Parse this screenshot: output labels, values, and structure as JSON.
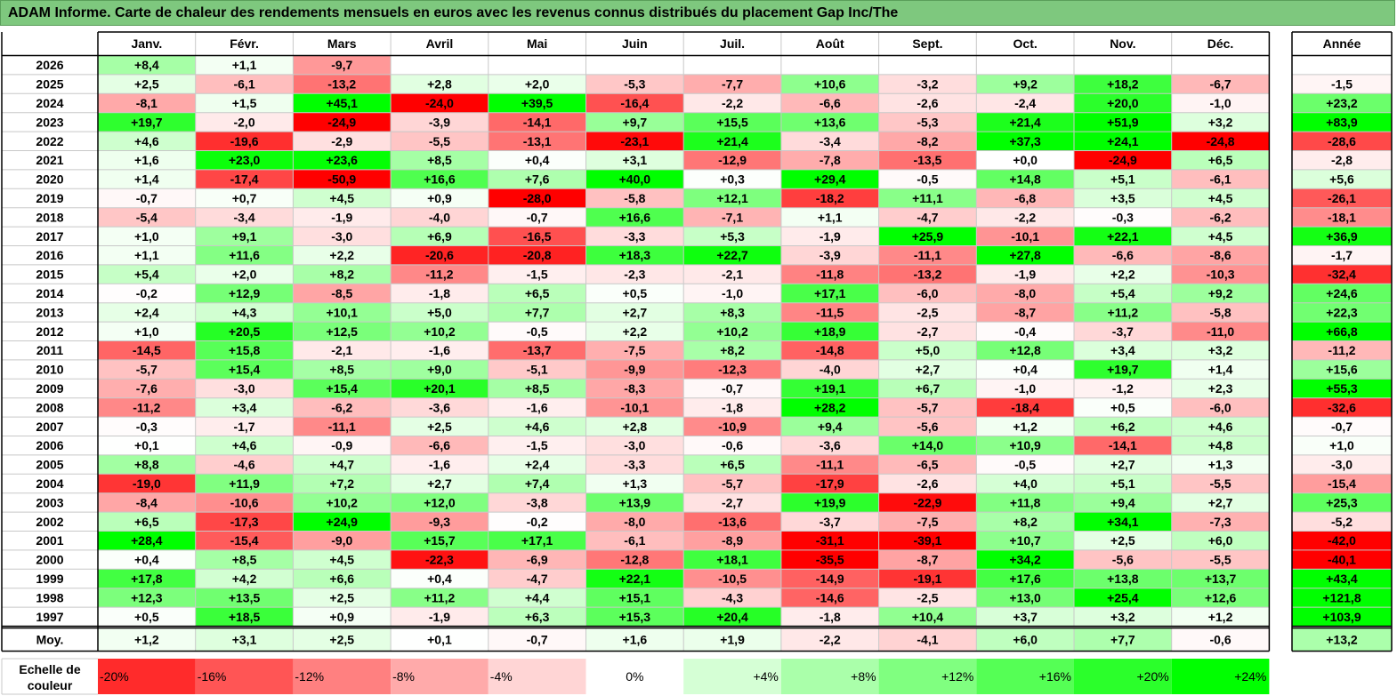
{
  "title": "ADAM Informe. Carte de chaleur des rendements mensuels en euros avec les revenus connus distribués du placement Gap Inc/The",
  "chart_data": {
    "type": "heatmap",
    "title": "ADAM Informe. Carte de chaleur des rendements mensuels en euros avec les revenus connus distribués du placement Gap Inc/The",
    "columns": [
      "Janv.",
      "Févr.",
      "Mars",
      "Avril",
      "Mai",
      "Juin",
      "Juil.",
      "Août",
      "Sept.",
      "Oct.",
      "Nov.",
      "Déc."
    ],
    "year_header": "Année",
    "rows": [
      {
        "year": "2026",
        "values": [
          "+8,4",
          "+1,1",
          "-9,7",
          "",
          "",
          "",
          "",
          "",
          "",
          "",
          "",
          ""
        ],
        "annual": ""
      },
      {
        "year": "2025",
        "values": [
          "+2,5",
          "-6,1",
          "-13,2",
          "+2,8",
          "+2,0",
          "-5,3",
          "-7,7",
          "+10,6",
          "-3,2",
          "+9,2",
          "+18,2",
          "-6,7"
        ],
        "annual": "-1,5"
      },
      {
        "year": "2024",
        "values": [
          "-8,1",
          "+1,5",
          "+45,1",
          "-24,0",
          "+39,5",
          "-16,4",
          "-2,2",
          "-6,6",
          "-2,6",
          "-2,4",
          "+20,0",
          "-1,0"
        ],
        "annual": "+23,2"
      },
      {
        "year": "2023",
        "values": [
          "+19,7",
          "-2,0",
          "-24,9",
          "-3,9",
          "-14,1",
          "+9,7",
          "+15,5",
          "+13,6",
          "-5,3",
          "+21,4",
          "+51,9",
          "+3,2"
        ],
        "annual": "+83,9"
      },
      {
        "year": "2022",
        "values": [
          "+4,6",
          "-19,6",
          "-2,9",
          "-5,5",
          "-13,1",
          "-23,1",
          "+21,4",
          "-3,4",
          "-8,2",
          "+37,3",
          "+24,1",
          "-24,8"
        ],
        "annual": "-28,6"
      },
      {
        "year": "2021",
        "values": [
          "+1,6",
          "+23,0",
          "+23,6",
          "+8,5",
          "+0,4",
          "+3,1",
          "-12,9",
          "-7,8",
          "-13,5",
          "+0,0",
          "-24,9",
          "+6,5"
        ],
        "annual": "-2,8"
      },
      {
        "year": "2020",
        "values": [
          "+1,4",
          "-17,4",
          "-50,9",
          "+16,6",
          "+7,6",
          "+40,0",
          "+0,3",
          "+29,4",
          "-0,5",
          "+14,8",
          "+5,1",
          "-6,1"
        ],
        "annual": "+5,6"
      },
      {
        "year": "2019",
        "values": [
          "-0,7",
          "+0,7",
          "+4,5",
          "+0,9",
          "-28,0",
          "-5,8",
          "+12,1",
          "-18,2",
          "+11,1",
          "-6,8",
          "+3,5",
          "+4,5"
        ],
        "annual": "-26,1"
      },
      {
        "year": "2018",
        "values": [
          "-5,4",
          "-3,4",
          "-1,9",
          "-4,0",
          "-0,7",
          "+16,6",
          "-7,1",
          "+1,1",
          "-4,7",
          "-2,2",
          "-0,3",
          "-6,2"
        ],
        "annual": "-18,1"
      },
      {
        "year": "2017",
        "values": [
          "+1,0",
          "+9,1",
          "-3,0",
          "+6,9",
          "-16,5",
          "-3,3",
          "+5,3",
          "-1,9",
          "+25,9",
          "-10,1",
          "+22,1",
          "+4,5"
        ],
        "annual": "+36,9"
      },
      {
        "year": "2016",
        "values": [
          "+1,1",
          "+11,6",
          "+2,2",
          "-20,6",
          "-20,8",
          "+18,3",
          "+22,7",
          "-3,9",
          "-11,1",
          "+27,8",
          "-6,6",
          "-8,6"
        ],
        "annual": "-1,7"
      },
      {
        "year": "2015",
        "values": [
          "+5,4",
          "+2,0",
          "+8,2",
          "-11,2",
          "-1,5",
          "-2,3",
          "-2,1",
          "-11,8",
          "-13,2",
          "-1,9",
          "+2,2",
          "-10,3"
        ],
        "annual": "-32,4"
      },
      {
        "year": "2014",
        "values": [
          "-0,2",
          "+12,9",
          "-8,5",
          "-1,8",
          "+6,5",
          "+0,5",
          "-1,0",
          "+17,1",
          "-6,0",
          "-8,0",
          "+5,4",
          "+9,2"
        ],
        "annual": "+24,6"
      },
      {
        "year": "2013",
        "values": [
          "+2,4",
          "+4,3",
          "+10,1",
          "+5,0",
          "+7,7",
          "+2,7",
          "+8,3",
          "-11,5",
          "-2,5",
          "-8,7",
          "+11,2",
          "-5,8"
        ],
        "annual": "+22,3"
      },
      {
        "year": "2012",
        "values": [
          "+1,0",
          "+20,5",
          "+12,5",
          "+10,2",
          "-0,5",
          "+2,2",
          "+10,2",
          "+18,9",
          "-2,7",
          "-0,4",
          "-3,7",
          "-11,0"
        ],
        "annual": "+66,8"
      },
      {
        "year": "2011",
        "values": [
          "-14,5",
          "+15,8",
          "-2,1",
          "-1,6",
          "-13,7",
          "-7,5",
          "+8,2",
          "-14,8",
          "+5,0",
          "+12,8",
          "+3,4",
          "+3,2"
        ],
        "annual": "-11,2"
      },
      {
        "year": "2010",
        "values": [
          "-5,7",
          "+15,4",
          "+8,5",
          "+9,0",
          "-5,1",
          "-9,9",
          "-12,3",
          "-4,0",
          "+2,7",
          "+0,4",
          "+19,7",
          "+1,4"
        ],
        "annual": "+15,6"
      },
      {
        "year": "2009",
        "values": [
          "-7,6",
          "-3,0",
          "+15,4",
          "+20,1",
          "+8,5",
          "-8,3",
          "-0,7",
          "+19,1",
          "+6,7",
          "-1,0",
          "-1,2",
          "+2,3"
        ],
        "annual": "+55,3"
      },
      {
        "year": "2008",
        "values": [
          "-11,2",
          "+3,4",
          "-6,2",
          "-3,6",
          "-1,6",
          "-10,1",
          "-1,8",
          "+28,2",
          "-5,7",
          "-18,4",
          "+0,5",
          "-6,0"
        ],
        "annual": "-32,6"
      },
      {
        "year": "2007",
        "values": [
          "-0,3",
          "-1,7",
          "-11,1",
          "+2,5",
          "+4,6",
          "+2,8",
          "-10,9",
          "+9,4",
          "-5,6",
          "+1,2",
          "+6,2",
          "+4,6"
        ],
        "annual": "-0,7"
      },
      {
        "year": "2006",
        "values": [
          "+0,1",
          "+4,6",
          "-0,9",
          "-6,6",
          "-1,5",
          "-3,0",
          "-0,6",
          "-3,6",
          "+14,0",
          "+10,9",
          "-14,1",
          "+4,8"
        ],
        "annual": "+1,0"
      },
      {
        "year": "2005",
        "values": [
          "+8,8",
          "-4,6",
          "+4,7",
          "-1,6",
          "+2,4",
          "-3,3",
          "+6,5",
          "-11,1",
          "-6,5",
          "-0,5",
          "+2,7",
          "+1,3"
        ],
        "annual": "-3,0"
      },
      {
        "year": "2004",
        "values": [
          "-19,0",
          "+11,9",
          "+7,2",
          "+2,7",
          "+7,4",
          "+1,3",
          "-5,7",
          "-17,9",
          "-2,6",
          "+4,0",
          "+5,1",
          "-5,5"
        ],
        "annual": "-15,4"
      },
      {
        "year": "2003",
        "values": [
          "-8,4",
          "-10,6",
          "+10,2",
          "+12,0",
          "-3,8",
          "+13,9",
          "-2,7",
          "+19,9",
          "-22,9",
          "+11,8",
          "+9,4",
          "+2,7"
        ],
        "annual": "+25,3"
      },
      {
        "year": "2002",
        "values": [
          "+6,5",
          "-17,3",
          "+24,9",
          "-9,3",
          "-0,2",
          "-8,0",
          "-13,6",
          "-3,7",
          "-7,5",
          "+8,2",
          "+34,1",
          "-7,3"
        ],
        "annual": "-5,2"
      },
      {
        "year": "2001",
        "values": [
          "+28,4",
          "-15,4",
          "-9,0",
          "+15,7",
          "+17,1",
          "-6,1",
          "-8,9",
          "-31,1",
          "-39,1",
          "+10,7",
          "+2,5",
          "+6,0"
        ],
        "annual": "-42,0"
      },
      {
        "year": "2000",
        "values": [
          "+0,4",
          "+8,5",
          "+4,5",
          "-22,3",
          "-6,9",
          "-12,8",
          "+18,1",
          "-35,5",
          "-8,7",
          "+34,2",
          "-5,6",
          "-5,5"
        ],
        "annual": "-40,1"
      },
      {
        "year": "1999",
        "values": [
          "+17,8",
          "+4,2",
          "+6,6",
          "+0,4",
          "-4,7",
          "+22,1",
          "-10,5",
          "-14,9",
          "-19,1",
          "+17,6",
          "+13,8",
          "+13,7"
        ],
        "annual": "+43,4"
      },
      {
        "year": "1998",
        "values": [
          "+12,3",
          "+13,5",
          "+2,5",
          "+11,2",
          "+4,4",
          "+15,1",
          "-4,3",
          "-14,6",
          "-2,5",
          "+13,0",
          "+25,4",
          "+12,6"
        ],
        "annual": "+121,8"
      },
      {
        "year": "1997",
        "values": [
          "+0,5",
          "+18,5",
          "+0,9",
          "-1,9",
          "+6,3",
          "+15,3",
          "+20,4",
          "-1,8",
          "+10,4",
          "+3,7",
          "+3,2",
          "+1,2"
        ],
        "annual": "+103,9"
      }
    ],
    "average": {
      "label": "Moy.",
      "values": [
        "+1,2",
        "+3,1",
        "+2,5",
        "+0,1",
        "-0,7",
        "+1,6",
        "+1,9",
        "-2,2",
        "-4,1",
        "+6,0",
        "+7,7",
        "-0,6"
      ],
      "annual": "+13,2"
    },
    "legend": {
      "label_line1": "Echelle de",
      "label_line2": "couleur",
      "steps": [
        {
          "label": "-20%",
          "value": -20
        },
        {
          "label": "-16%",
          "value": -16
        },
        {
          "label": "-12%",
          "value": -12
        },
        {
          "label": "-8%",
          "value": -8
        },
        {
          "label": "-4%",
          "value": -4
        },
        {
          "label": "0%",
          "value": 0
        },
        {
          "label": "+4%",
          "value": 4
        },
        {
          "label": "+8%",
          "value": 8
        },
        {
          "label": "+12%",
          "value": 12
        },
        {
          "label": "+16%",
          "value": 16
        },
        {
          "label": "+20%",
          "value": 20
        },
        {
          "label": "+24%",
          "value": 24
        }
      ]
    }
  }
}
